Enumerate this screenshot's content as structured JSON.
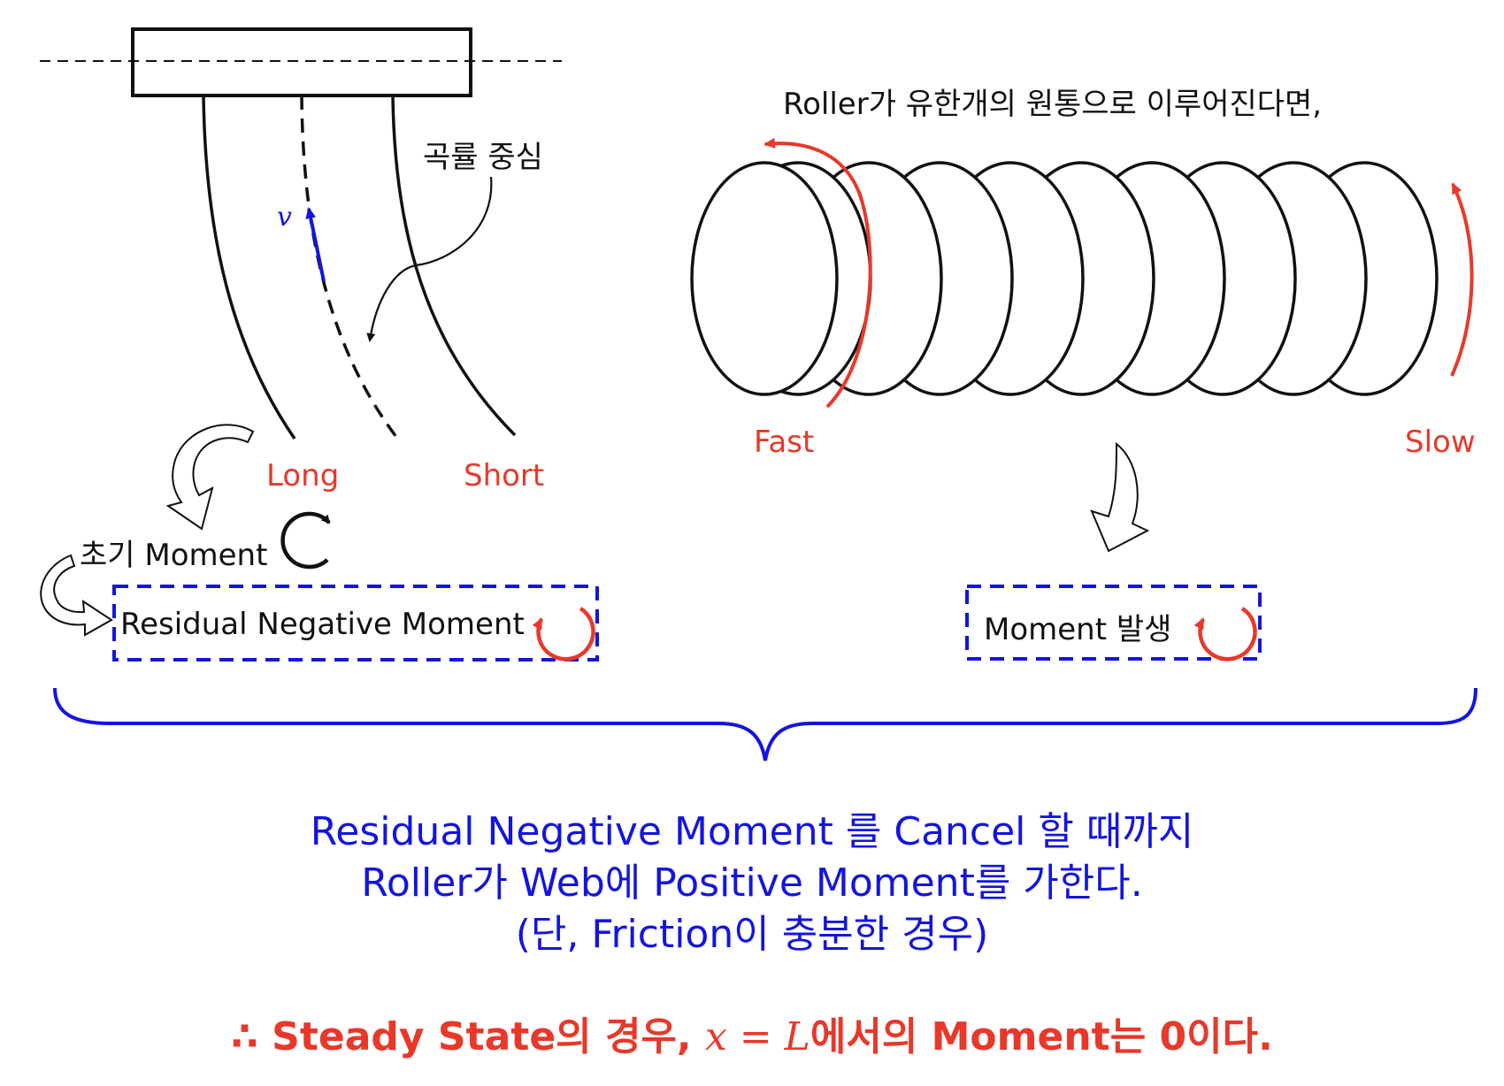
{
  "labels": {
    "curvature_center": "곡률 중심",
    "velocity": "v",
    "long": "Long",
    "short": "Short",
    "initial_moment": "초기 Moment",
    "residual_box": "Residual Negative Moment",
    "roller_premise": "Roller가 유한개의 원통으로 이루어진다면,",
    "fast": "Fast",
    "slow": "Slow",
    "moment_box": "Moment 발생"
  },
  "conclusion": {
    "line1": "Residual Negative Moment 를 Cancel 할 때까지",
    "line2": "Roller가 Web에 Positive Moment를 가한다.",
    "line3": "(단, Friction이 충분한 경우)"
  },
  "result": {
    "prefix": "∴ Steady State의 경우, ",
    "var_x": "x",
    "equals": " = ",
    "var_L": "L",
    "suffix": "에서의 Moment는 0이다."
  },
  "colors": {
    "black": "#111111",
    "red": "#e8382a",
    "blue": "#1414e0"
  }
}
